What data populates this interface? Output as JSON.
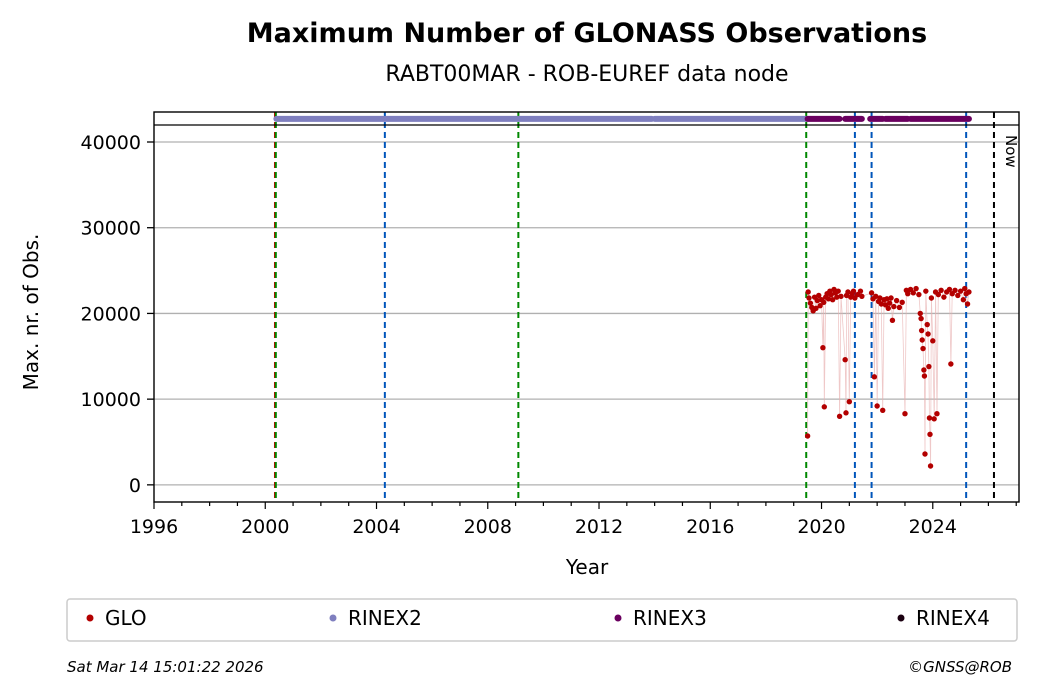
{
  "chart_data": {
    "type": "scatter",
    "title": "Maximum Number of GLONASS Observations",
    "subtitle": "RABT00MAR - ROB-EUREF data node",
    "xlabel": "Year",
    "ylabel": "Max. nr. of Obs.",
    "xlim": [
      1996.0,
      2027.1
    ],
    "ylim": [
      -2000,
      43500
    ],
    "x_ticks": [
      1996,
      2000,
      2004,
      2008,
      2012,
      2016,
      2020,
      2024
    ],
    "y_ticks": [
      0,
      10000,
      20000,
      30000,
      40000
    ],
    "grid": "horizontal",
    "now_label": "Now",
    "now_year": 2026.2,
    "vertical_lines": [
      {
        "year": 2000.35,
        "color": "#cc0000"
      },
      {
        "year": 2000.38,
        "color": "#008800"
      },
      {
        "year": 2004.3,
        "color": "#0055bb"
      },
      {
        "year": 2009.1,
        "color": "#008800"
      },
      {
        "year": 2019.45,
        "color": "#008800"
      },
      {
        "year": 2021.2,
        "color": "#0055bb"
      },
      {
        "year": 2021.8,
        "color": "#0055bb"
      },
      {
        "year": 2025.2,
        "color": "#0055bb"
      }
    ],
    "format_bands": [
      {
        "name": "RINEX2",
        "color": "#7f7fbf",
        "y": 42700,
        "ranges": [
          [
            2000.4,
            2013.9
          ],
          [
            2014.0,
            2019.45
          ]
        ]
      },
      {
        "name": "RINEX3",
        "color": "#6a005f",
        "y": 42700,
        "ranges": [
          [
            2019.5,
            2020.65
          ],
          [
            2020.85,
            2021.45
          ],
          [
            2021.75,
            2022.2
          ],
          [
            2022.3,
            2023.1
          ],
          [
            2023.2,
            2025.3
          ]
        ]
      }
    ],
    "series": [
      {
        "name": "GLO",
        "color": "#b30000",
        "points": [
          [
            2019.5,
            5700
          ],
          [
            2019.52,
            22500
          ],
          [
            2019.55,
            21800
          ],
          [
            2019.6,
            21200
          ],
          [
            2019.65,
            20700
          ],
          [
            2019.7,
            20300
          ],
          [
            2019.75,
            21900
          ],
          [
            2019.8,
            20600
          ],
          [
            2019.85,
            21500
          ],
          [
            2019.9,
            22100
          ],
          [
            2019.95,
            20900
          ],
          [
            2020.0,
            21600
          ],
          [
            2020.05,
            16000
          ],
          [
            2020.08,
            21300
          ],
          [
            2020.1,
            9100
          ],
          [
            2020.15,
            21900
          ],
          [
            2020.2,
            22300
          ],
          [
            2020.25,
            21700
          ],
          [
            2020.3,
            22600
          ],
          [
            2020.35,
            22200
          ],
          [
            2020.4,
            21600
          ],
          [
            2020.45,
            22800
          ],
          [
            2020.5,
            22400
          ],
          [
            2020.55,
            21900
          ],
          [
            2020.6,
            22600
          ],
          [
            2020.65,
            8000
          ],
          [
            2020.7,
            22000
          ],
          [
            2020.85,
            14600
          ],
          [
            2020.88,
            8400
          ],
          [
            2020.9,
            22100
          ],
          [
            2020.95,
            22500
          ],
          [
            2021.0,
            9700
          ],
          [
            2021.05,
            21900
          ],
          [
            2021.1,
            22300
          ],
          [
            2021.15,
            22600
          ],
          [
            2021.2,
            21800
          ],
          [
            2021.3,
            22200
          ],
          [
            2021.4,
            22600
          ],
          [
            2021.45,
            22000
          ],
          [
            2021.8,
            22400
          ],
          [
            2021.85,
            21700
          ],
          [
            2021.9,
            12600
          ],
          [
            2021.95,
            22000
          ],
          [
            2022.0,
            9200
          ],
          [
            2022.05,
            21400
          ],
          [
            2022.1,
            21800
          ],
          [
            2022.15,
            21100
          ],
          [
            2022.2,
            8700
          ],
          [
            2022.25,
            21600
          ],
          [
            2022.3,
            21000
          ],
          [
            2022.35,
            21700
          ],
          [
            2022.4,
            20600
          ],
          [
            2022.45,
            21200
          ],
          [
            2022.5,
            21800
          ],
          [
            2022.55,
            19200
          ],
          [
            2022.6,
            20800
          ],
          [
            2022.7,
            21500
          ],
          [
            2022.8,
            20700
          ],
          [
            2022.9,
            21300
          ],
          [
            2023.0,
            8300
          ],
          [
            2023.05,
            22700
          ],
          [
            2023.1,
            22300
          ],
          [
            2023.2,
            22800
          ],
          [
            2023.3,
            22400
          ],
          [
            2023.4,
            22900
          ],
          [
            2023.5,
            22200
          ],
          [
            2023.55,
            20000
          ],
          [
            2023.58,
            19400
          ],
          [
            2023.6,
            18000
          ],
          [
            2023.62,
            16900
          ],
          [
            2023.65,
            15900
          ],
          [
            2023.68,
            13400
          ],
          [
            2023.7,
            12700
          ],
          [
            2023.72,
            3600
          ],
          [
            2023.75,
            22600
          ],
          [
            2023.8,
            18700
          ],
          [
            2023.83,
            17600
          ],
          [
            2023.86,
            13800
          ],
          [
            2023.88,
            7800
          ],
          [
            2023.9,
            5900
          ],
          [
            2023.92,
            2200
          ],
          [
            2023.95,
            21800
          ],
          [
            2024.0,
            16800
          ],
          [
            2024.05,
            7700
          ],
          [
            2024.1,
            22500
          ],
          [
            2024.15,
            8300
          ],
          [
            2024.2,
            22200
          ],
          [
            2024.3,
            22700
          ],
          [
            2024.4,
            21900
          ],
          [
            2024.5,
            22500
          ],
          [
            2024.6,
            22800
          ],
          [
            2024.65,
            14100
          ],
          [
            2024.7,
            22300
          ],
          [
            2024.8,
            22700
          ],
          [
            2024.9,
            22100
          ],
          [
            2025.0,
            22600
          ],
          [
            2025.1,
            21600
          ],
          [
            2025.15,
            22900
          ],
          [
            2025.2,
            22300
          ],
          [
            2025.25,
            21100
          ],
          [
            2025.3,
            22500
          ]
        ]
      }
    ],
    "legend": [
      {
        "label": "GLO",
        "color": "#b30000"
      },
      {
        "label": "RINEX2",
        "color": "#7f7fbf"
      },
      {
        "label": "RINEX3",
        "color": "#6a005f"
      },
      {
        "label": "RINEX4",
        "color": "#1a0010"
      }
    ]
  },
  "footer": {
    "timestamp": "Sat Mar 14 15:01:22 2026",
    "copyright": "©GNSS@ROB"
  }
}
